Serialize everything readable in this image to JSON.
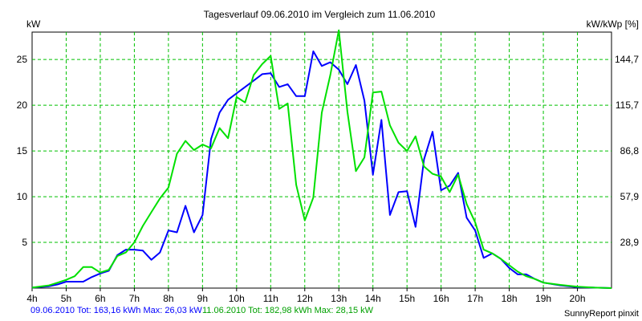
{
  "chart_data": {
    "type": "line",
    "title": "Tagesverlauf 09.06.2010 im Vergleich zum 11.06.2010",
    "ylabel_left": "kW",
    "ylabel_right": "kW/kWp [%]",
    "xlim": [
      4,
      21
    ],
    "ylim": [
      0,
      28
    ],
    "x_ticks": [
      {
        "v": 4,
        "label": "4h"
      },
      {
        "v": 5,
        "label": "5h"
      },
      {
        "v": 6,
        "label": "6h"
      },
      {
        "v": 7,
        "label": "7h"
      },
      {
        "v": 8,
        "label": "8h"
      },
      {
        "v": 9,
        "label": "9h"
      },
      {
        "v": 10,
        "label": "10h"
      },
      {
        "v": 11,
        "label": "11h"
      },
      {
        "v": 12,
        "label": "12h"
      },
      {
        "v": 13,
        "label": "13h"
      },
      {
        "v": 14,
        "label": "14h"
      },
      {
        "v": 15,
        "label": "15h"
      },
      {
        "v": 16,
        "label": "16h"
      },
      {
        "v": 17,
        "label": "17h"
      },
      {
        "v": 18,
        "label": "18h"
      },
      {
        "v": 19,
        "label": "19h"
      },
      {
        "v": 20,
        "label": "20h"
      }
    ],
    "y_ticks_left": [
      {
        "v": 5,
        "label": "5"
      },
      {
        "v": 10,
        "label": "10"
      },
      {
        "v": 15,
        "label": "15"
      },
      {
        "v": 20,
        "label": "20"
      },
      {
        "v": 25,
        "label": "25"
      }
    ],
    "y_ticks_right": [
      {
        "v": 5,
        "label": "28,9"
      },
      {
        "v": 10,
        "label": "57,9"
      },
      {
        "v": 15,
        "label": "86,8"
      },
      {
        "v": 20,
        "label": "115,7"
      },
      {
        "v": 25,
        "label": "144,7"
      }
    ],
    "grid": true,
    "series": [
      {
        "name": "09.06.2010",
        "color": "#0000ff",
        "x": [
          4.0,
          4.5,
          4.75,
          5.0,
          5.25,
          5.5,
          5.75,
          6.0,
          6.25,
          6.5,
          6.75,
          7.0,
          7.25,
          7.5,
          7.75,
          8.0,
          8.25,
          8.5,
          8.75,
          9.0,
          9.25,
          9.5,
          9.75,
          10.0,
          10.25,
          10.5,
          10.75,
          11.0,
          11.25,
          11.5,
          11.75,
          12.0,
          12.25,
          12.5,
          12.75,
          13.0,
          13.25,
          13.5,
          13.75,
          14.0,
          14.25,
          14.5,
          14.75,
          15.0,
          15.25,
          15.5,
          15.75,
          16.0,
          16.25,
          16.5,
          16.75,
          17.0,
          17.25,
          17.5,
          17.75,
          18.0,
          18.25,
          18.5,
          18.75,
          19.0,
          19.5,
          20.0,
          20.5,
          21.0
        ],
        "y": [
          0.05,
          0.2,
          0.4,
          0.7,
          0.7,
          0.7,
          1.2,
          1.6,
          1.9,
          3.6,
          4.2,
          4.2,
          4.1,
          3.1,
          3.9,
          6.3,
          6.1,
          9.0,
          6.1,
          8.0,
          16.3,
          19.2,
          20.6,
          21.3,
          22.0,
          22.7,
          23.4,
          23.5,
          22.0,
          22.3,
          21.0,
          21.0,
          25.9,
          24.3,
          24.7,
          23.9,
          22.3,
          24.4,
          20.5,
          12.4,
          18.4,
          8.0,
          10.5,
          10.6,
          6.7,
          14.1,
          17.1,
          10.7,
          11.2,
          12.6,
          7.7,
          6.3,
          3.3,
          3.8,
          3.2,
          2.2,
          1.5,
          1.5,
          1.0,
          0.6,
          0.3,
          0.1,
          0.05,
          0.0
        ]
      },
      {
        "name": "11.06.2010",
        "color": "#00e000",
        "x": [
          4.0,
          4.5,
          4.75,
          5.0,
          5.25,
          5.5,
          5.75,
          6.0,
          6.25,
          6.5,
          6.75,
          7.0,
          7.25,
          7.5,
          7.75,
          8.0,
          8.25,
          8.5,
          8.75,
          9.0,
          9.25,
          9.5,
          9.75,
          10.0,
          10.25,
          10.5,
          10.75,
          11.0,
          11.25,
          11.5,
          11.75,
          12.0,
          12.25,
          12.5,
          12.75,
          13.0,
          13.25,
          13.5,
          13.75,
          14.0,
          14.25,
          14.5,
          14.75,
          15.0,
          15.25,
          15.5,
          15.75,
          16.0,
          16.25,
          16.5,
          16.75,
          17.0,
          17.25,
          17.5,
          17.75,
          18.0,
          18.25,
          18.5,
          18.75,
          19.0,
          19.5,
          20.0,
          20.5,
          21.0
        ],
        "y": [
          0.05,
          0.3,
          0.6,
          0.9,
          1.3,
          2.3,
          2.3,
          1.7,
          2.0,
          3.5,
          3.9,
          5.0,
          6.8,
          8.3,
          9.8,
          11.0,
          14.7,
          16.1,
          15.1,
          15.7,
          15.3,
          17.5,
          16.4,
          20.9,
          20.3,
          23.3,
          24.5,
          25.4,
          19.6,
          20.2,
          11.3,
          7.4,
          9.9,
          19.2,
          23.3,
          28.2,
          19.3,
          12.8,
          14.3,
          21.4,
          21.5,
          17.8,
          15.9,
          15.0,
          16.6,
          13.3,
          12.5,
          12.2,
          10.5,
          12.4,
          9.2,
          7.2,
          4.2,
          3.8,
          3.2,
          2.5,
          1.8,
          1.3,
          1.0,
          0.6,
          0.35,
          0.15,
          0.05,
          0.0
        ]
      }
    ]
  },
  "footer": {
    "blue_text": "09.06.2010 Tot: 163,16 kWh Max: 26,03 kW",
    "green_text": "11.06.2010 Tot: 182,98 kWh Max: 28,15 kW",
    "brand": "SunnyReport pinxit"
  }
}
